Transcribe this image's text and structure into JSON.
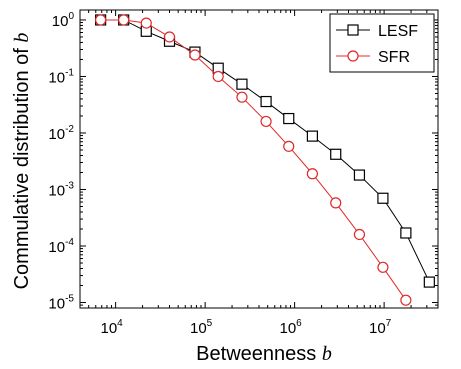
{
  "chart_data": {
    "type": "line",
    "xlabel": "Betweenness",
    "xlabel_var": "b",
    "ylabel": "Commulative distribution of",
    "ylabel_var": "b",
    "xscale": "log",
    "yscale": "log",
    "xlim": [
      4000,
      40000000
    ],
    "ylim": [
      8e-06,
      1.5
    ],
    "x_ticks": [
      {
        "base": "10",
        "exp": "4",
        "value": 10000
      },
      {
        "base": "10",
        "exp": "5",
        "value": 100000
      },
      {
        "base": "10",
        "exp": "6",
        "value": 1000000
      },
      {
        "base": "10",
        "exp": "7",
        "value": 10000000
      }
    ],
    "y_ticks": [
      {
        "base": "10",
        "exp": "0",
        "value": 1
      },
      {
        "base": "10",
        "exp": "-1",
        "value": 0.1
      },
      {
        "base": "10",
        "exp": "-2",
        "value": 0.01
      },
      {
        "base": "10",
        "exp": "-3",
        "value": 0.001
      },
      {
        "base": "10",
        "exp": "-4",
        "value": 0.0001
      },
      {
        "base": "10",
        "exp": "-5",
        "value": 1e-05
      }
    ],
    "legend_position": "top-right",
    "series": [
      {
        "name": "LESF",
        "color": "#000000",
        "marker": "square",
        "x": [
          6800,
          12300,
          22000,
          40000,
          77000,
          140000,
          258000,
          480000,
          860000,
          1580000,
          2880000,
          5300000,
          9700000,
          17500000,
          32000000
        ],
        "y": [
          1.0,
          1.0,
          0.63,
          0.42,
          0.27,
          0.14,
          0.073,
          0.036,
          0.018,
          0.0088,
          0.0042,
          0.0018,
          0.0007,
          0.00017,
          2.3e-05
        ]
      },
      {
        "name": "SFR",
        "color": "#e0282a",
        "marker": "circle",
        "x": [
          6800,
          12300,
          22000,
          40000,
          77000,
          140000,
          258000,
          480000,
          860000,
          1580000,
          2880000,
          5300000,
          9700000,
          17500000
        ],
        "y": [
          1.0,
          1.0,
          0.88,
          0.5,
          0.24,
          0.1,
          0.043,
          0.016,
          0.0058,
          0.0019,
          0.00058,
          0.00016,
          4.2e-05,
          1.1e-05
        ]
      }
    ]
  }
}
